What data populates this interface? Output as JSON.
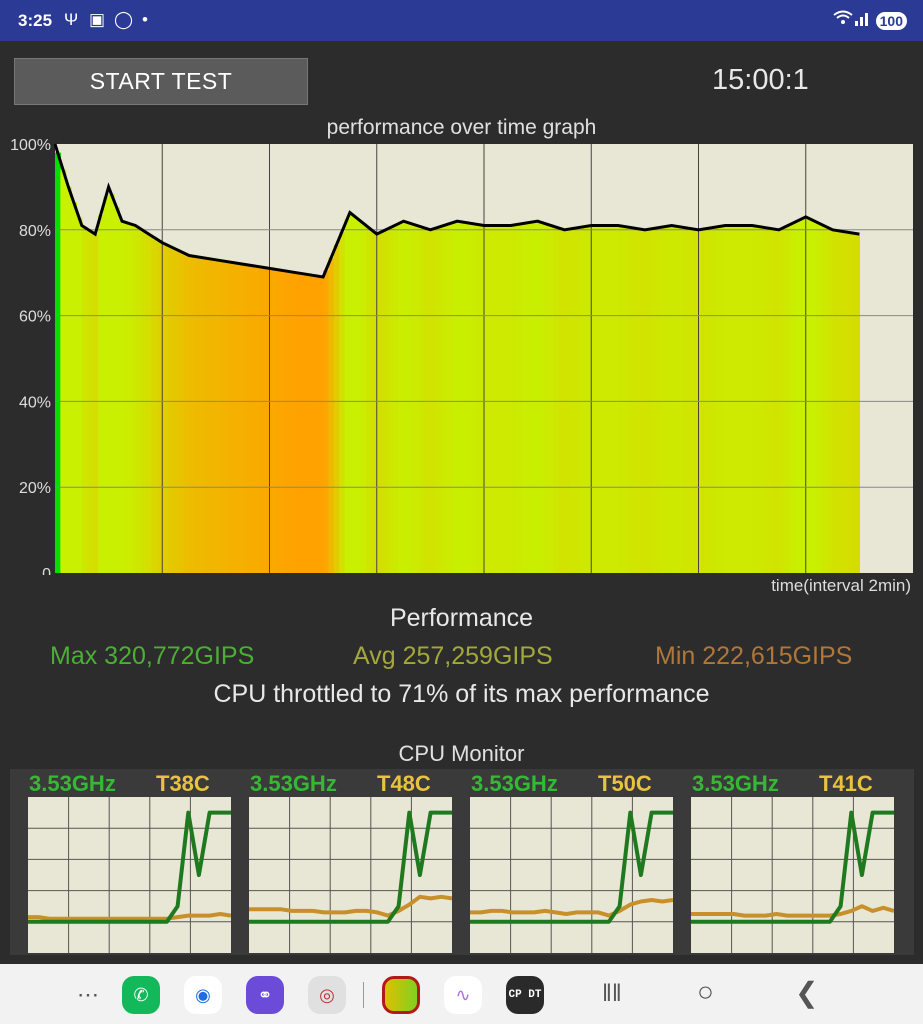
{
  "status_bar": {
    "time": "3:25",
    "left_icons": [
      "usb-icon",
      "screenshot-icon",
      "sim-icon",
      "dot-icon"
    ],
    "right_icons": [
      "wifi-icon",
      "signal-icon"
    ],
    "battery": "100"
  },
  "controls": {
    "start_label": "START TEST",
    "timer": "15:00:1"
  },
  "graph": {
    "title": "performance over time graph",
    "x_label": "time(interval 2min)",
    "y_ticks": [
      "100%",
      "80%",
      "60%",
      "40%",
      "20%",
      "0"
    ],
    "colors": {
      "background": "#e8e6d4",
      "line": "#000000",
      "high": "#c8f000",
      "low": "#ffa200",
      "max": "#00e000"
    }
  },
  "chart_data": {
    "type": "area",
    "title": "performance over time graph",
    "xlabel": "time(interval 2min)",
    "ylabel": "",
    "ylim": [
      0,
      100
    ],
    "y_ticks": [
      "0",
      "20%",
      "40%",
      "60%",
      "80%",
      "100%"
    ],
    "x_minutes": [
      0,
      0.25,
      0.5,
      0.75,
      1,
      1.25,
      1.5,
      1.75,
      2,
      2.5,
      3,
      3.5,
      4,
      4.5,
      5,
      5.5,
      6,
      6.5,
      7,
      7.5,
      8,
      8.5,
      9,
      9.5,
      10,
      10.5,
      11,
      11.5,
      12,
      12.5,
      13,
      13.5,
      14,
      14.5,
      15
    ],
    "values": [
      100,
      90,
      81,
      79,
      90,
      82,
      81,
      79,
      77,
      74,
      73,
      72,
      71,
      70,
      69,
      84,
      79,
      82,
      80,
      82,
      81,
      81,
      82,
      80,
      81,
      81,
      80,
      81,
      80,
      81,
      81,
      80,
      83,
      80,
      79
    ]
  },
  "performance": {
    "heading": "Performance",
    "max": "Max 320,772GIPS",
    "avg": "Avg 257,259GIPS",
    "min": "Min 222,615GIPS",
    "throttle": "CPU throttled to 71% of its max performance"
  },
  "cpu_monitor": {
    "title": "CPU Monitor",
    "cores": [
      {
        "freq": "3.53GHz",
        "temp": "T38C",
        "freq_levels": [
          0.2,
          0.2,
          0.2,
          0.2,
          0.2,
          0.2,
          0.2,
          0.2,
          0.2,
          0.2,
          0.2,
          0.2,
          0.2,
          0.2,
          0.3,
          0.9,
          0.5,
          0.9,
          0.9,
          0.9
        ],
        "temp_levels": [
          0.23,
          0.23,
          0.22,
          0.22,
          0.22,
          0.22,
          0.22,
          0.22,
          0.22,
          0.22,
          0.22,
          0.22,
          0.22,
          0.22,
          0.23,
          0.24,
          0.24,
          0.24,
          0.25,
          0.24
        ]
      },
      {
        "freq": "3.53GHz",
        "temp": "T48C",
        "freq_levels": [
          0.2,
          0.2,
          0.2,
          0.2,
          0.2,
          0.2,
          0.2,
          0.2,
          0.2,
          0.2,
          0.2,
          0.2,
          0.2,
          0.2,
          0.3,
          0.9,
          0.5,
          0.9,
          0.9,
          0.9
        ],
        "temp_levels": [
          0.28,
          0.28,
          0.28,
          0.28,
          0.27,
          0.27,
          0.27,
          0.26,
          0.26,
          0.26,
          0.27,
          0.27,
          0.26,
          0.24,
          0.27,
          0.31,
          0.36,
          0.35,
          0.36,
          0.35
        ]
      },
      {
        "freq": "3.53GHz",
        "temp": "T50C",
        "freq_levels": [
          0.2,
          0.2,
          0.2,
          0.2,
          0.2,
          0.2,
          0.2,
          0.2,
          0.2,
          0.2,
          0.2,
          0.2,
          0.2,
          0.2,
          0.3,
          0.9,
          0.5,
          0.9,
          0.9,
          0.9
        ],
        "temp_levels": [
          0.26,
          0.26,
          0.27,
          0.27,
          0.26,
          0.26,
          0.26,
          0.27,
          0.26,
          0.25,
          0.26,
          0.26,
          0.26,
          0.24,
          0.27,
          0.31,
          0.33,
          0.34,
          0.33,
          0.34
        ]
      },
      {
        "freq": "3.53GHz",
        "temp": "T41C",
        "freq_levels": [
          0.2,
          0.2,
          0.2,
          0.2,
          0.2,
          0.2,
          0.2,
          0.2,
          0.2,
          0.2,
          0.2,
          0.2,
          0.2,
          0.2,
          0.3,
          0.9,
          0.5,
          0.9,
          0.9,
          0.9
        ],
        "temp_levels": [
          0.25,
          0.25,
          0.25,
          0.25,
          0.25,
          0.24,
          0.24,
          0.24,
          0.25,
          0.24,
          0.24,
          0.24,
          0.24,
          0.24,
          0.25,
          0.27,
          0.3,
          0.27,
          0.29,
          0.27
        ]
      }
    ],
    "colors": {
      "freq": "#1f7a1f",
      "temp": "#c8902a",
      "panel_bg": "#e8e6d4"
    }
  },
  "navbar": {
    "apps": [
      "app-drawer-icon",
      "phone-icon",
      "messages-icon",
      "internet-icon",
      "camera-icon",
      "cpu-throttling-app-icon",
      "audio-app-icon",
      "cpdt-app-icon"
    ],
    "cpdt_label": "CP DT",
    "buttons": [
      "recents-icon",
      "home-icon",
      "back-icon"
    ]
  }
}
